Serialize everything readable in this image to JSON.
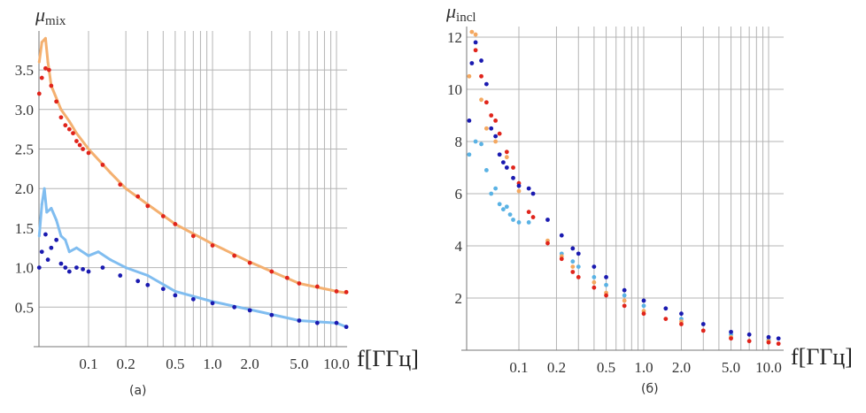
{
  "chart_data": [
    {
      "type": "scatter",
      "panel_label": "(a)",
      "ylabel_symbol": "μ",
      "ylabel_sub": "mix",
      "xlabel": "f[ГГц]",
      "xscale": "log",
      "xlim": [
        0.04,
        12.5
      ],
      "ylim": [
        0,
        3.95
      ],
      "grid": true,
      "xticks": [
        0.1,
        0.2,
        0.5,
        1.0,
        2.0,
        5.0,
        10.0
      ],
      "xtick_labels": [
        "0.1",
        "0.2",
        "0.5",
        "1.0",
        "2.0",
        "5.0",
        "10.0"
      ],
      "yticks": [
        0.5,
        1.0,
        1.5,
        2.0,
        2.5,
        3.0,
        3.5
      ],
      "ytick_labels": [
        "0.5",
        "1.0",
        "1.5",
        "2.0",
        "2.5",
        "3.0",
        "3.5"
      ],
      "series": [
        {
          "name": "orange-line",
          "style": "line",
          "color": "#f4b070",
          "x": [
            0.04,
            0.042,
            0.045,
            0.047,
            0.05,
            0.06,
            0.07,
            0.08,
            0.1,
            0.15,
            0.2,
            0.3,
            0.5,
            1,
            2,
            5,
            10,
            12
          ],
          "y": [
            3.6,
            3.85,
            3.9,
            3.6,
            3.3,
            3.0,
            2.85,
            2.7,
            2.5,
            2.2,
            2.0,
            1.8,
            1.55,
            1.3,
            1.07,
            0.8,
            0.7,
            0.68
          ]
        },
        {
          "name": "red-dots",
          "style": "dots",
          "color": "#e0241b",
          "x": [
            0.04,
            0.042,
            0.045,
            0.048,
            0.05,
            0.055,
            0.06,
            0.065,
            0.07,
            0.075,
            0.08,
            0.085,
            0.09,
            0.1,
            0.13,
            0.18,
            0.25,
            0.3,
            0.4,
            0.5,
            0.7,
            1,
            1.5,
            2,
            3,
            4,
            5,
            7,
            10,
            12
          ],
          "y": [
            3.2,
            3.4,
            3.52,
            3.5,
            3.3,
            3.1,
            2.9,
            2.8,
            2.75,
            2.7,
            2.6,
            2.55,
            2.5,
            2.45,
            2.3,
            2.05,
            1.9,
            1.78,
            1.65,
            1.55,
            1.4,
            1.28,
            1.15,
            1.06,
            0.95,
            0.87,
            0.8,
            0.76,
            0.7,
            0.69
          ]
        },
        {
          "name": "light-blue-line",
          "style": "line",
          "color": "#80bdf0",
          "x": [
            0.04,
            0.042,
            0.044,
            0.046,
            0.05,
            0.055,
            0.06,
            0.065,
            0.07,
            0.08,
            0.1,
            0.12,
            0.15,
            0.2,
            0.3,
            0.5,
            1,
            2,
            5,
            10,
            12
          ],
          "y": [
            1.4,
            1.8,
            2.0,
            1.7,
            1.75,
            1.6,
            1.4,
            1.35,
            1.2,
            1.25,
            1.15,
            1.2,
            1.1,
            1.0,
            0.9,
            0.7,
            0.57,
            0.47,
            0.33,
            0.3,
            0.25
          ]
        },
        {
          "name": "dark-blue-dots",
          "style": "dots",
          "color": "#1a1ab0",
          "x": [
            0.04,
            0.042,
            0.045,
            0.047,
            0.05,
            0.055,
            0.06,
            0.065,
            0.07,
            0.08,
            0.09,
            0.1,
            0.13,
            0.18,
            0.25,
            0.3,
            0.4,
            0.5,
            0.7,
            1,
            1.5,
            2,
            3,
            5,
            7,
            10,
            12
          ],
          "y": [
            1.0,
            1.2,
            1.42,
            1.1,
            1.25,
            1.35,
            1.05,
            1.0,
            0.95,
            1.0,
            0.98,
            0.95,
            1.0,
            0.9,
            0.83,
            0.78,
            0.73,
            0.65,
            0.6,
            0.55,
            0.5,
            0.46,
            0.4,
            0.33,
            0.3,
            0.3,
            0.25
          ]
        }
      ]
    },
    {
      "type": "scatter",
      "panel_label": "(б)",
      "ylabel_symbol": "μ",
      "ylabel_sub": "incl",
      "xlabel": "f[ГГц]",
      "xscale": "log",
      "xlim": [
        0.038,
        12.5
      ],
      "ylim": [
        0,
        12.5
      ],
      "grid": true,
      "xticks": [
        0.1,
        0.2,
        0.5,
        1.0,
        2.0,
        5.0,
        10.0
      ],
      "xtick_labels": [
        "0.1",
        "0.2",
        "0.5",
        "1.0",
        "2.0",
        "5.0",
        "10.0"
      ],
      "yticks": [
        2,
        4,
        6,
        8,
        10,
        12
      ],
      "ytick_labels": [
        "2",
        "4",
        "6",
        "8",
        "10",
        "12"
      ],
      "series": [
        {
          "name": "light-blue-dots",
          "style": "dots",
          "color": "#5ab2e4",
          "x": [
            0.04,
            0.045,
            0.05,
            0.055,
            0.06,
            0.065,
            0.07,
            0.075,
            0.08,
            0.085,
            0.09,
            0.1,
            0.12,
            0.22,
            0.27,
            0.3,
            0.4,
            0.5,
            0.7,
            1,
            2,
            5,
            10
          ],
          "y": [
            7.5,
            8.0,
            7.9,
            6.9,
            6.0,
            6.2,
            5.6,
            5.4,
            5.5,
            5.2,
            5.0,
            4.9,
            4.9,
            3.7,
            3.4,
            3.2,
            2.8,
            2.5,
            2.1,
            1.7,
            1.2,
            0.6,
            0.4
          ]
        },
        {
          "name": "orange-dots",
          "style": "dots",
          "color": "#f4a860",
          "x": [
            0.04,
            0.042,
            0.045,
            0.05,
            0.055,
            0.065,
            0.08,
            0.1,
            0.17,
            0.22,
            0.27,
            0.4,
            0.5,
            0.7,
            1,
            2,
            5,
            10
          ],
          "y": [
            10.5,
            12.2,
            12.1,
            9.6,
            8.5,
            8.0,
            7.4,
            6.1,
            4.2,
            3.6,
            3.2,
            2.6,
            2.2,
            1.9,
            1.5,
            1.1,
            0.5,
            0.35
          ]
        },
        {
          "name": "red-dots",
          "style": "dots",
          "color": "#e0241b",
          "x": [
            0.045,
            0.05,
            0.055,
            0.06,
            0.065,
            0.07,
            0.08,
            0.09,
            0.1,
            0.12,
            0.13,
            0.17,
            0.22,
            0.27,
            0.3,
            0.4,
            0.5,
            0.7,
            1,
            1.5,
            2,
            3,
            5,
            7,
            10,
            12
          ],
          "y": [
            11.5,
            10.5,
            9.5,
            9.0,
            8.8,
            8.3,
            7.6,
            7.0,
            6.4,
            5.3,
            5.1,
            4.1,
            3.5,
            3.0,
            2.8,
            2.4,
            2.1,
            1.7,
            1.4,
            1.2,
            1.0,
            0.75,
            0.45,
            0.35,
            0.3,
            0.25
          ]
        },
        {
          "name": "dark-blue-dots",
          "style": "dots",
          "color": "#1a1ab0",
          "x": [
            0.04,
            0.042,
            0.045,
            0.05,
            0.055,
            0.06,
            0.065,
            0.07,
            0.075,
            0.08,
            0.09,
            0.1,
            0.12,
            0.13,
            0.17,
            0.22,
            0.27,
            0.3,
            0.4,
            0.5,
            0.7,
            1,
            1.5,
            2,
            3,
            5,
            7,
            10,
            12
          ],
          "y": [
            8.8,
            11,
            11.8,
            11.1,
            10.2,
            8.5,
            8.2,
            7.5,
            7.2,
            7.0,
            6.6,
            6.3,
            6.2,
            6.0,
            5.0,
            4.4,
            3.9,
            3.7,
            3.2,
            2.8,
            2.3,
            1.9,
            1.6,
            1.4,
            1.0,
            0.7,
            0.6,
            0.5,
            0.45
          ]
        }
      ]
    }
  ]
}
